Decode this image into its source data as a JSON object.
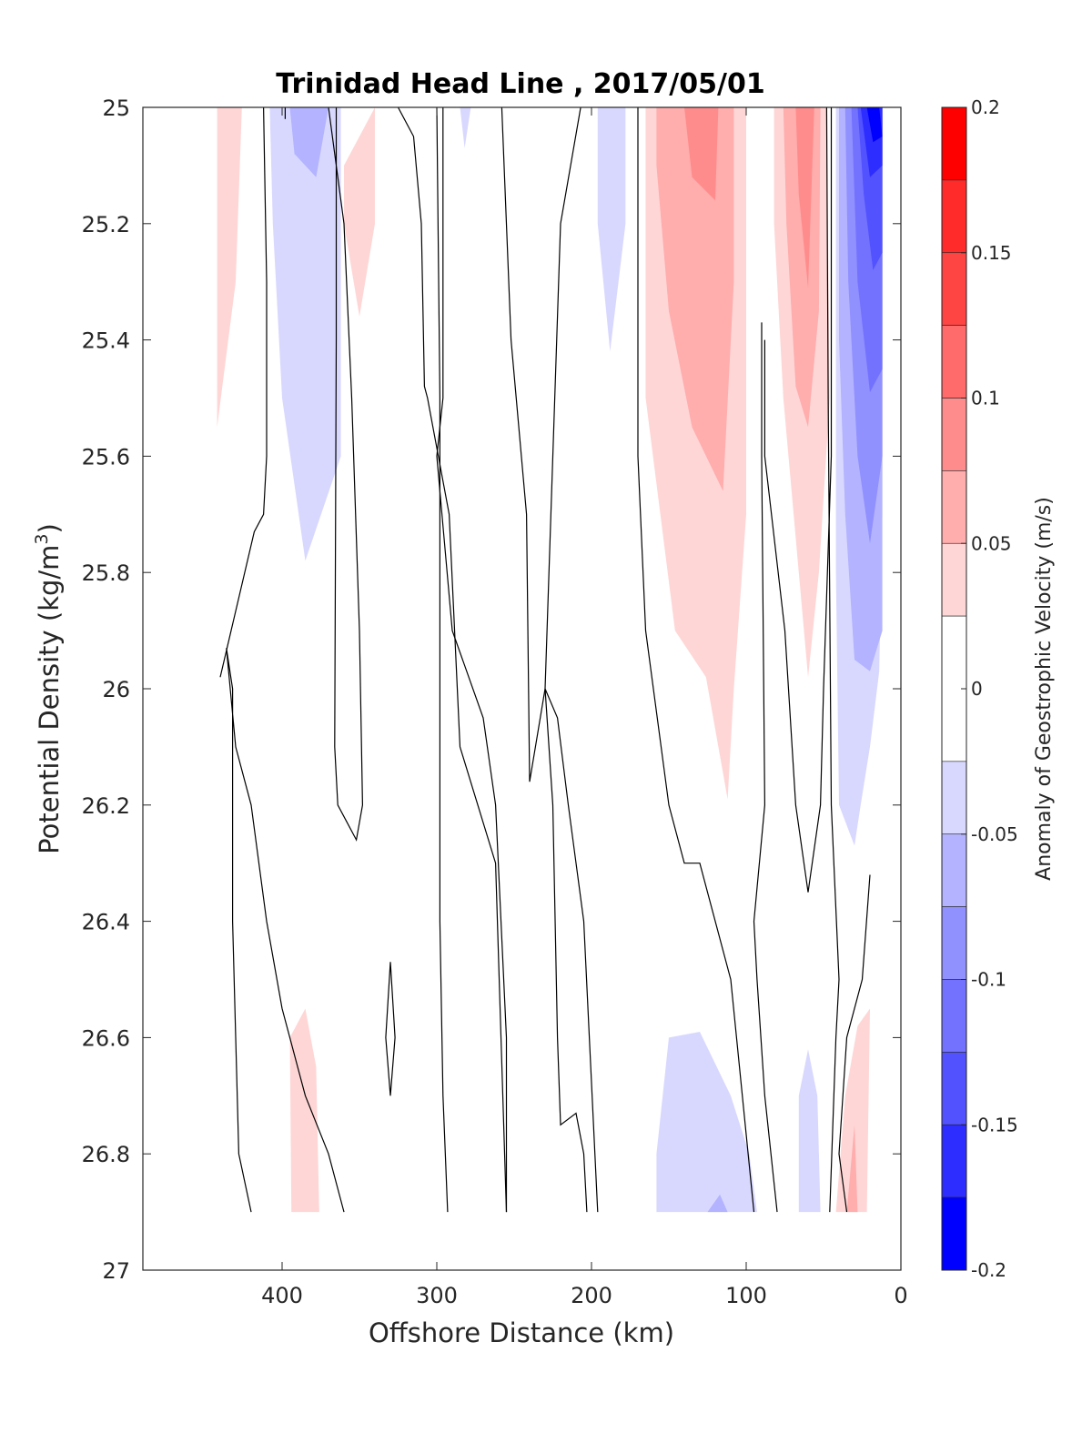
{
  "chart_data": {
    "type": "contour",
    "title": "Trinidad Head Line , 2017/05/01",
    "xlabel": "Offshore Distance (km)",
    "ylabel": "Potential Density (kg/m",
    "ylabel_superscript": "3",
    "ylabel_close": ")",
    "x_reversed": true,
    "y_reversed": true,
    "xlim": [
      0,
      490
    ],
    "ylim": [
      25,
      27
    ],
    "x_ticks": [
      400,
      300,
      200,
      100,
      0
    ],
    "y_ticks": [
      "25",
      "25.2",
      "25.4",
      "25.6",
      "25.8",
      "26",
      "26.2",
      "26.4",
      "26.6",
      "26.8",
      "27"
    ],
    "colorbar": {
      "label": "Anomaly of Geostrophic Velocity (m/s)",
      "ticks": [
        "0.2",
        "0.15",
        "0.1",
        "0.05",
        "0",
        "-0.05",
        "-0.1",
        "-0.15",
        "-0.2"
      ],
      "range": [
        -0.2,
        0.2
      ],
      "levels": [
        0.2,
        0.175,
        0.15,
        0.125,
        0.1,
        0.075,
        0.05,
        0.025,
        -0.025,
        -0.05,
        -0.075,
        -0.1,
        -0.125,
        -0.15,
        -0.175,
        -0.2
      ],
      "colors": [
        "#ff0000",
        "#ff2a2a",
        "#ff4444",
        "#ff6a6a",
        "#ff8c8c",
        "#ffadad",
        "#ffd6d6",
        "#ffffff",
        "#d8d8ff",
        "#b3b3ff",
        "#9090ff",
        "#7272ff",
        "#5252ff",
        "#2d2dff",
        "#0000ff"
      ]
    },
    "filled_regions": [
      {
        "name": "pos-weak-440",
        "level": 0.025,
        "points": [
          [
            442,
            25.0
          ],
          [
            426,
            25.0
          ],
          [
            430,
            25.3
          ],
          [
            442,
            25.55
          ]
        ]
      },
      {
        "name": "neg-weak-390",
        "level": -0.025,
        "points": [
          [
            408,
            25.0
          ],
          [
            362,
            25.0
          ],
          [
            362,
            25.6
          ],
          [
            385,
            25.78
          ],
          [
            400,
            25.5
          ],
          [
            406,
            25.2
          ]
        ]
      },
      {
        "name": "neg-mid-390",
        "level": -0.05,
        "points": [
          [
            395,
            25.0
          ],
          [
            370,
            25.0
          ],
          [
            378,
            25.12
          ],
          [
            392,
            25.08
          ]
        ]
      },
      {
        "name": "pos-weak-360",
        "level": 0.025,
        "points": [
          [
            360,
            25.1
          ],
          [
            340,
            25.0
          ],
          [
            340,
            25.2
          ],
          [
            350,
            25.36
          ],
          [
            360,
            25.2
          ]
        ]
      },
      {
        "name": "neg-weak-280",
        "level": -0.025,
        "points": [
          [
            285,
            25.0
          ],
          [
            278,
            25.0
          ],
          [
            282,
            25.07
          ]
        ]
      },
      {
        "name": "neg-weak-190",
        "level": -0.025,
        "points": [
          [
            196,
            25.0
          ],
          [
            178,
            25.0
          ],
          [
            178,
            25.2
          ],
          [
            188,
            25.42
          ],
          [
            196,
            25.2
          ]
        ]
      },
      {
        "name": "pos-weak-130",
        "level": 0.025,
        "points": [
          [
            165,
            25.0
          ],
          [
            100,
            25.0
          ],
          [
            100,
            25.7
          ],
          [
            108,
            26.0
          ],
          [
            112,
            26.19
          ],
          [
            126,
            25.98
          ],
          [
            146,
            25.9
          ],
          [
            165,
            25.5
          ]
        ]
      },
      {
        "name": "pos-mid-130",
        "level": 0.05,
        "points": [
          [
            158,
            25.0
          ],
          [
            108,
            25.0
          ],
          [
            108,
            25.3
          ],
          [
            115,
            25.66
          ],
          [
            135,
            25.55
          ],
          [
            150,
            25.35
          ],
          [
            158,
            25.1
          ]
        ]
      },
      {
        "name": "pos-strong-130",
        "level": 0.075,
        "points": [
          [
            140,
            25.0
          ],
          [
            118,
            25.0
          ],
          [
            120,
            25.16
          ],
          [
            135,
            25.12
          ]
        ]
      },
      {
        "name": "pos-weak-60",
        "level": 0.025,
        "points": [
          [
            82,
            25.0
          ],
          [
            48,
            25.0
          ],
          [
            46,
            25.5
          ],
          [
            53,
            25.8
          ],
          [
            60,
            25.98
          ],
          [
            66,
            25.8
          ],
          [
            76,
            25.5
          ],
          [
            82,
            25.2
          ]
        ]
      },
      {
        "name": "pos-mid-60",
        "level": 0.05,
        "points": [
          [
            76,
            25.0
          ],
          [
            52,
            25.0
          ],
          [
            53,
            25.35
          ],
          [
            60,
            25.55
          ],
          [
            68,
            25.48
          ],
          [
            74,
            25.2
          ]
        ]
      },
      {
        "name": "pos-strong-60",
        "level": 0.075,
        "points": [
          [
            68,
            25.0
          ],
          [
            56,
            25.0
          ],
          [
            60,
            25.31
          ],
          [
            66,
            25.15
          ]
        ]
      },
      {
        "name": "neg-weak-coast",
        "level": -0.025,
        "points": [
          [
            42,
            25.0
          ],
          [
            12,
            25.0
          ],
          [
            12,
            25.7
          ],
          [
            14,
            25.97
          ],
          [
            20,
            26.1
          ],
          [
            26,
            26.2
          ],
          [
            30,
            26.27
          ],
          [
            40,
            26.2
          ],
          [
            42,
            25.8
          ]
        ]
      },
      {
        "name": "neg-mid-coast",
        "level": -0.05,
        "points": [
          [
            40,
            25.0
          ],
          [
            12,
            25.0
          ],
          [
            12,
            25.9
          ],
          [
            20,
            25.97
          ],
          [
            30,
            25.95
          ],
          [
            36,
            25.7
          ],
          [
            40,
            25.4
          ]
        ]
      },
      {
        "name": "neg-mid2-coast",
        "level": -0.075,
        "points": [
          [
            36,
            25.0
          ],
          [
            12,
            25.0
          ],
          [
            12,
            25.6
          ],
          [
            20,
            25.75
          ],
          [
            28,
            25.6
          ],
          [
            34,
            25.3
          ]
        ]
      },
      {
        "name": "neg-strong-coast",
        "level": -0.1,
        "points": [
          [
            32,
            25.0
          ],
          [
            12,
            25.0
          ],
          [
            12,
            25.45
          ],
          [
            20,
            25.49
          ],
          [
            28,
            25.3
          ]
        ]
      },
      {
        "name": "neg-str2-coast",
        "level": -0.125,
        "points": [
          [
            28,
            25.0
          ],
          [
            12,
            25.0
          ],
          [
            12,
            25.25
          ],
          [
            18,
            25.28
          ],
          [
            24,
            25.15
          ]
        ]
      },
      {
        "name": "neg-str3-coast",
        "level": -0.15,
        "points": [
          [
            26,
            25.0
          ],
          [
            12,
            25.0
          ],
          [
            12,
            25.1
          ],
          [
            20,
            25.12
          ]
        ]
      },
      {
        "name": "neg-str4-coast",
        "level": -0.175,
        "points": [
          [
            22,
            25.0
          ],
          [
            14,
            25.0
          ],
          [
            12,
            25.05
          ],
          [
            18,
            25.06
          ]
        ]
      },
      {
        "name": "pos-weak-390-deep",
        "level": 0.025,
        "points": [
          [
            395,
            26.6
          ],
          [
            385,
            26.55
          ],
          [
            378,
            26.65
          ],
          [
            376,
            26.9
          ],
          [
            394,
            26.9
          ]
        ]
      },
      {
        "name": "neg-weak-120-deep",
        "level": -0.025,
        "points": [
          [
            158,
            26.9
          ],
          [
            93,
            26.9
          ],
          [
            98,
            26.8
          ],
          [
            110,
            26.7
          ],
          [
            130,
            26.59
          ],
          [
            150,
            26.6
          ],
          [
            158,
            26.8
          ]
        ]
      },
      {
        "name": "neg-mid-120-deep",
        "level": -0.05,
        "points": [
          [
            125,
            26.9
          ],
          [
            112,
            26.9
          ],
          [
            117,
            26.87
          ]
        ]
      },
      {
        "name": "neg-weak-60-deep",
        "level": -0.025,
        "points": [
          [
            66,
            26.9
          ],
          [
            52,
            26.9
          ],
          [
            54,
            26.7
          ],
          [
            60,
            26.62
          ],
          [
            66,
            26.7
          ]
        ]
      },
      {
        "name": "pos-weak-30-deep",
        "level": 0.025,
        "points": [
          [
            42,
            26.9
          ],
          [
            22,
            26.9
          ],
          [
            20,
            26.55
          ],
          [
            28,
            26.58
          ],
          [
            36,
            26.7
          ]
        ]
      },
      {
        "name": "pos-mid-30-deep",
        "level": 0.05,
        "points": [
          [
            35,
            26.9
          ],
          [
            28,
            26.9
          ],
          [
            30,
            26.75
          ]
        ]
      }
    ],
    "contour_lines": [
      [
        [
          412,
          25.0
        ],
        [
          410,
          25.3
        ],
        [
          410,
          25.6
        ],
        [
          412,
          25.7
        ],
        [
          418,
          25.73
        ],
        [
          440,
          25.98
        ]
      ],
      [
        [
          398,
          25.0
        ],
        [
          398,
          25.02
        ]
      ],
      [
        [
          365,
          25.0
        ],
        [
          365,
          25.4
        ],
        [
          366,
          26.1
        ],
        [
          364,
          26.2
        ],
        [
          352,
          26.26
        ],
        [
          348,
          26.2
        ],
        [
          350,
          25.9
        ],
        [
          355,
          25.5
        ],
        [
          360,
          25.2
        ],
        [
          370,
          25.0
        ]
      ],
      [
        [
          325,
          25.0
        ],
        [
          315,
          25.05
        ],
        [
          310,
          25.2
        ],
        [
          308,
          25.48
        ],
        [
          306,
          25.5
        ],
        [
          292,
          25.7
        ],
        [
          285,
          26.1
        ],
        [
          262,
          26.3
        ],
        [
          255,
          26.9
        ]
      ],
      [
        [
          296,
          25.0
        ],
        [
          296,
          25.5
        ],
        [
          300,
          25.6
        ],
        [
          290,
          25.9
        ],
        [
          270,
          26.05
        ],
        [
          262,
          26.2
        ],
        [
          255,
          26.6
        ],
        [
          255,
          26.9
        ]
      ],
      [
        [
          258,
          25.0
        ],
        [
          252,
          25.4
        ],
        [
          242,
          25.7
        ],
        [
          240,
          26.16
        ],
        [
          230,
          26.0
        ],
        [
          225,
          25.6
        ],
        [
          220,
          25.2
        ],
        [
          207,
          25.0
        ]
      ],
      [
        [
          170,
          25.0
        ],
        [
          170,
          25.6
        ],
        [
          165,
          25.9
        ],
        [
          150,
          26.2
        ],
        [
          140,
          26.3
        ],
        [
          130,
          26.3
        ],
        [
          110,
          26.5
        ],
        [
          95,
          26.9
        ]
      ],
      [
        [
          90,
          25.37
        ],
        [
          90,
          25.6
        ],
        [
          88,
          26.2
        ],
        [
          95,
          26.4
        ],
        [
          93,
          26.5
        ],
        [
          88,
          26.7
        ],
        [
          80,
          26.9
        ]
      ],
      [
        [
          45,
          25.0
        ],
        [
          45,
          25.6
        ],
        [
          50,
          26.0
        ],
        [
          52,
          26.2
        ],
        [
          60,
          26.35
        ],
        [
          68,
          26.2
        ],
        [
          75,
          25.9
        ],
        [
          88,
          25.6
        ],
        [
          88,
          25.4
        ]
      ],
      [
        [
          48,
          25.0
        ],
        [
          47,
          25.5
        ],
        [
          45,
          26.2
        ],
        [
          40,
          26.5
        ],
        [
          42,
          26.6
        ],
        [
          46,
          26.9
        ]
      ],
      [
        [
          20,
          26.32
        ],
        [
          25,
          26.5
        ],
        [
          35,
          26.6
        ],
        [
          40,
          26.8
        ],
        [
          35,
          26.9
        ]
      ],
      [
        [
          330,
          26.47
        ],
        [
          333,
          26.6
        ],
        [
          330,
          26.7
        ],
        [
          327,
          26.6
        ],
        [
          330,
          26.47
        ]
      ],
      [
        [
          300,
          25.0
        ],
        [
          298,
          25.5
        ],
        [
          298,
          26.0
        ],
        [
          298,
          26.4
        ],
        [
          296,
          26.7
        ],
        [
          293,
          26.9
        ]
      ],
      [
        [
          420,
          26.9
        ],
        [
          428,
          26.8
        ],
        [
          430,
          26.6
        ],
        [
          432,
          26.4
        ],
        [
          432,
          26.0
        ],
        [
          436,
          25.93
        ],
        [
          430,
          26.1
        ],
        [
          420,
          26.2
        ],
        [
          410,
          26.4
        ],
        [
          400,
          26.55
        ],
        [
          385,
          26.7
        ],
        [
          370,
          26.8
        ],
        [
          360,
          26.9
        ]
      ],
      [
        [
          203,
          26.9
        ],
        [
          205,
          26.8
        ],
        [
          210,
          26.73
        ],
        [
          220,
          26.75
        ],
        [
          222,
          26.6
        ],
        [
          225,
          26.2
        ],
        [
          230,
          26.0
        ],
        [
          222,
          26.05
        ],
        [
          215,
          26.2
        ],
        [
          205,
          26.4
        ],
        [
          196,
          26.9
        ]
      ]
    ]
  }
}
